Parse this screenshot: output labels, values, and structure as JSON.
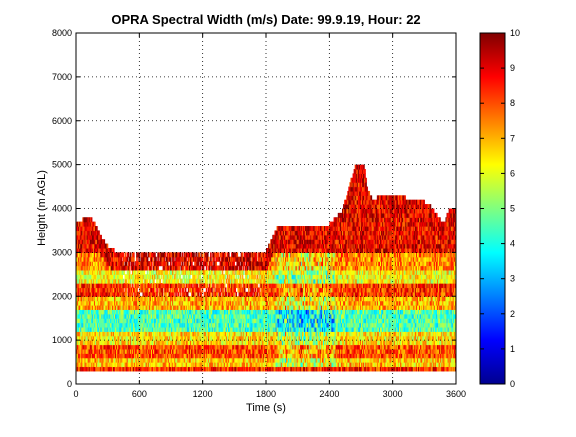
{
  "chart_data": {
    "type": "heatmap",
    "title": "OPRA Spectral Width (m/s)  Date: 99.9.19, Hour: 22",
    "xlabel": "Time (s)",
    "ylabel": "Height (m AGL)",
    "xlim": [
      0,
      3600
    ],
    "ylim": [
      0,
      8000
    ],
    "x_ticks": [
      "0",
      "600",
      "1200",
      "1800",
      "2400",
      "3000",
      "3600"
    ],
    "y_ticks": [
      "0",
      "1000",
      "2000",
      "3000",
      "4000",
      "5000",
      "6000",
      "7000",
      "8000"
    ],
    "colorbar": {
      "colormap": "jet",
      "clim": [
        0,
        10
      ],
      "ticks": [
        "0",
        "1",
        "2",
        "3",
        "4",
        "5",
        "6",
        "7",
        "8",
        "9",
        "10"
      ]
    },
    "grid": true,
    "data_description": "Time-height field of spectral width (m/s); data present from about 300 m up to a time-varying top near 3000–5000 m AGL.",
    "data_top_height_m": {
      "time_s": [
        0,
        60,
        120,
        180,
        240,
        300,
        360,
        420,
        480,
        540,
        600,
        900,
        1200,
        1500,
        1800,
        1860,
        1920,
        2040,
        2160,
        2280,
        2400,
        2520,
        2580,
        2640,
        2700,
        2730,
        2760,
        2820,
        2880,
        3000,
        3120,
        3240,
        3360,
        3480,
        3540,
        3600
      ],
      "height_m": [
        3700,
        3700,
        3800,
        3600,
        3300,
        3100,
        3000,
        3000,
        3000,
        3000,
        3000,
        3000,
        3000,
        3000,
        3000,
        3300,
        3600,
        3600,
        3600,
        3600,
        3600,
        3900,
        4400,
        4900,
        5000,
        5000,
        4400,
        4100,
        4300,
        4300,
        4200,
        4200,
        4000,
        3600,
        4000,
        4000
      ]
    },
    "layers": [
      {
        "bottom_m": 200,
        "top_m": 400,
        "level": 8.5
      },
      {
        "bottom_m": 400,
        "top_m": 600,
        "level": 6.8
      },
      {
        "bottom_m": 600,
        "top_m": 900,
        "level": 8.0
      },
      {
        "bottom_m": 900,
        "top_m": 1200,
        "level": 6.5
      },
      {
        "bottom_m": 1200,
        "top_m": 1700,
        "level": 4.5
      },
      {
        "bottom_m": 1700,
        "top_m": 2000,
        "level": 7.0
      },
      {
        "bottom_m": 2000,
        "top_m": 2300,
        "level": 8.3
      },
      {
        "bottom_m": 2300,
        "top_m": 2600,
        "level": 6.2
      },
      {
        "bottom_m": 2600,
        "top_m": 3000,
        "level": 7.5
      },
      {
        "bottom_m": 3000,
        "top_m": 5000,
        "level": 8.8
      }
    ]
  }
}
